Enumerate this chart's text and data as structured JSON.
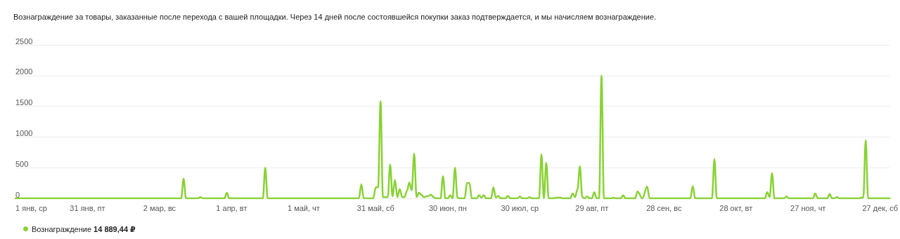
{
  "chart_data": {
    "type": "line",
    "subtitle": "Вознаграждение за товары, заказанные после перехода с вашей площадки. Через 14 дней после состоявшейся покупки заказ подтверждается, и мы начисляем вознаграждение.",
    "xlim": [
      "--01-01",
      "--12-31"
    ],
    "xticks": [
      {
        "value": "--01-01",
        "label": "1 янв, ср"
      },
      {
        "value": "--01-31",
        "label": "31 янв, пт"
      },
      {
        "value": "--03-02",
        "label": "2 мар, вс"
      },
      {
        "value": "--04-01",
        "label": "1 апр, вт"
      },
      {
        "value": "--05-01",
        "label": "1 май, чт"
      },
      {
        "value": "--05-31",
        "label": "31 май, сб"
      },
      {
        "value": "--06-30",
        "label": "30 июн, пн"
      },
      {
        "value": "--07-30",
        "label": "30 июл, ср"
      },
      {
        "value": "--08-29",
        "label": "29 авг, пт"
      },
      {
        "value": "--09-28",
        "label": "28 сен, вс"
      },
      {
        "value": "--10-28",
        "label": "28 окт, вт"
      },
      {
        "value": "--11-27",
        "label": "27 ноя, чт"
      },
      {
        "value": "--12-27",
        "label": "27 дек, сб"
      }
    ],
    "ylim": [
      0,
      2500
    ],
    "yticks": [
      0,
      500,
      1000,
      1500,
      2000,
      2500
    ],
    "grid": "y",
    "legend": "bottom left",
    "marker": "none",
    "series": [
      {
        "name": "Вознаграждение 14 889,44 ₽",
        "color": "#88d234",
        "x": [
          "--01-01",
          "--03-11",
          "--03-12",
          "--03-13",
          "--03-18",
          "--03-19",
          "--03-20",
          "--03-29",
          "--03-30",
          "--03-31",
          "--04-14",
          "--04-15",
          "--04-16",
          "--05-24",
          "--05-25",
          "--05-26",
          "--05-30",
          "--05-31",
          "--06-01",
          "--06-02",
          "--06-03",
          "--06-05",
          "--06-06",
          "--06-07",
          "--06-08",
          "--06-09",
          "--06-10",
          "--06-11",
          "--06-12",
          "--06-13",
          "--06-14",
          "--06-15",
          "--06-16",
          "--06-17",
          "--06-18",
          "--06-19",
          "--06-20",
          "--06-22",
          "--06-23",
          "--06-24",
          "--06-25",
          "--06-27",
          "--06-28",
          "--06-29",
          "--06-30",
          "--07-01",
          "--07-02",
          "--07-03",
          "--07-04",
          "--07-05",
          "--07-07",
          "--07-08",
          "--07-09",
          "--07-10",
          "--07-12",
          "--07-13",
          "--07-14",
          "--07-15",
          "--07-16",
          "--07-18",
          "--07-19",
          "--07-20",
          "--07-21",
          "--07-22",
          "--07-24",
          "--07-25",
          "--07-26",
          "--07-29",
          "--07-30",
          "--07-31",
          "--08-02",
          "--08-03",
          "--08-04",
          "--08-07",
          "--08-08",
          "--08-09",
          "--08-10",
          "--08-11",
          "--08-13",
          "--08-14",
          "--08-15",
          "--08-16",
          "--08-17",
          "--08-20",
          "--08-21",
          "--08-22",
          "--08-23",
          "--08-24",
          "--08-25",
          "--08-26",
          "--08-27",
          "--08-28",
          "--08-29",
          "--08-30",
          "--08-31",
          "--09-01",
          "--09-02",
          "--09-03",
          "--09-06",
          "--09-07",
          "--09-08",
          "--09-10",
          "--09-11",
          "--09-12",
          "--09-16",
          "--09-17",
          "--09-19",
          "--09-21",
          "--09-22",
          "--10-09",
          "--10-10",
          "--10-11",
          "--10-18",
          "--10-19",
          "--10-20",
          "--11-09",
          "--11-10",
          "--11-11",
          "--11-12",
          "--11-13",
          "--11-17",
          "--11-18",
          "--11-19",
          "--11-29",
          "--11-30",
          "--12-01",
          "--12-05",
          "--12-06",
          "--12-07",
          "--12-08",
          "--12-09",
          "--12-10",
          "--12-18",
          "--12-19",
          "--12-20",
          "--12-21",
          "--12-22",
          "--12-31"
        ],
        "values": [
          0,
          0,
          320,
          0,
          0,
          20,
          0,
          0,
          90,
          0,
          0,
          500,
          0,
          0,
          230,
          0,
          0,
          180,
          180,
          1580,
          20,
          20,
          550,
          30,
          300,
          20,
          150,
          20,
          20,
          120,
          260,
          130,
          730,
          20,
          90,
          60,
          20,
          40,
          60,
          20,
          0,
          0,
          360,
          0,
          0,
          50,
          0,
          500,
          10,
          0,
          0,
          250,
          250,
          0,
          0,
          50,
          10,
          50,
          0,
          0,
          180,
          10,
          40,
          0,
          0,
          40,
          0,
          0,
          30,
          0,
          0,
          20,
          0,
          0,
          720,
          0,
          580,
          0,
          0,
          10,
          10,
          10,
          0,
          0,
          80,
          20,
          150,
          520,
          20,
          0,
          30,
          0,
          0,
          100,
          0,
          0,
          2000,
          0,
          0,
          10,
          0,
          0,
          50,
          0,
          0,
          110,
          0,
          190,
          0,
          0,
          200,
          0,
          0,
          640,
          0,
          0,
          100,
          20,
          410,
          0,
          0,
          30,
          0,
          0,
          80,
          0,
          0,
          70,
          0,
          0,
          20,
          0,
          0,
          10,
          10,
          950,
          0,
          0
        ]
      }
    ]
  }
}
